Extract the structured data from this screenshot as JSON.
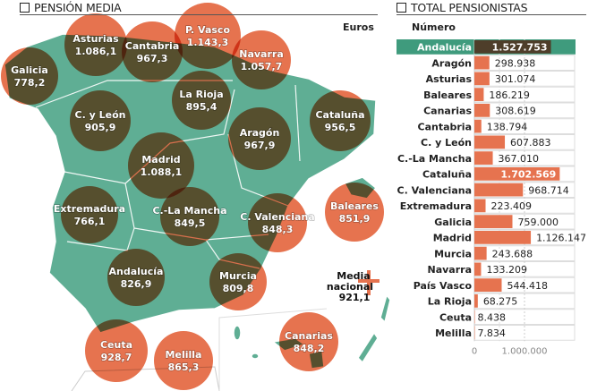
{
  "left": {
    "title": "PENSIÓN MEDIA",
    "unit": "Euros"
  },
  "right": {
    "title": "TOTAL PENSIONISTAS",
    "unit": "Número"
  },
  "national": {
    "label1": "Media",
    "label2": "nacional",
    "value": "921,1"
  },
  "colors": {
    "green": "#5fae94",
    "orange": "#e6734f",
    "highlight": "#3f9b7d",
    "dark": "#4e3e2a"
  },
  "chart_data": [
    {
      "type": "bubble-map",
      "title": "PENSIÓN MEDIA",
      "unit": "Euros",
      "regions": [
        {
          "name": "Galicia",
          "value": "778,2"
        },
        {
          "name": "Asturias",
          "value": "1.086,1"
        },
        {
          "name": "Cantabria",
          "value": "967,3"
        },
        {
          "name": "P. Vasco",
          "value": "1.143,3"
        },
        {
          "name": "Navarra",
          "value": "1.057,7"
        },
        {
          "name": "La Rioja",
          "value": "895,4"
        },
        {
          "name": "C. y León",
          "value": "905,9"
        },
        {
          "name": "Aragón",
          "value": "967,9"
        },
        {
          "name": "Cataluña",
          "value": "956,5"
        },
        {
          "name": "Madrid",
          "value": "1.088,1"
        },
        {
          "name": "Baleares",
          "value": "851,9"
        },
        {
          "name": "Extremadura",
          "value": "766,1"
        },
        {
          "name": "C.-La Mancha",
          "value": "849,5"
        },
        {
          "name": "C. Valenciana",
          "value": "848,3"
        },
        {
          "name": "Andalucía",
          "value": "826,9"
        },
        {
          "name": "Murcia",
          "value": "809,8"
        },
        {
          "name": "Ceuta",
          "value": "928,7"
        },
        {
          "name": "Melilla",
          "value": "865,3"
        },
        {
          "name": "Canarias",
          "value": "848,2"
        }
      ]
    },
    {
      "type": "bar",
      "title": "TOTAL PENSIONISTAS",
      "ylabel": "Número",
      "xlim": [
        0,
        2000000
      ],
      "ticks": [
        {
          "v": 0,
          "label": "0"
        },
        {
          "v": 1000000,
          "label": "1.000.000"
        }
      ],
      "categories": [
        "Andalucía",
        "Aragón",
        "Asturias",
        "Baleares",
        "Canarias",
        "Cantabria",
        "C. y León",
        "C.-La Mancha",
        "Cataluña",
        "C. Valenciana",
        "Extremadura",
        "Galicia",
        "Madrid",
        "Murcia",
        "Navarra",
        "País Vasco",
        "La Rioja",
        "Ceuta",
        "Melilla"
      ],
      "values": [
        1527753,
        298938,
        301074,
        186219,
        308619,
        138794,
        607883,
        367010,
        1702569,
        968714,
        223409,
        759000,
        1126147,
        243688,
        133209,
        544418,
        68275,
        8438,
        7834
      ],
      "labels": [
        "1.527.753",
        "298.938",
        "301.074",
        "186.219",
        "308.619",
        "138.794",
        "607.883",
        "367.010",
        "1.702.569",
        "968.714",
        "223.409",
        "759.000",
        "1.126.147",
        "243.688",
        "133.209",
        "544.418",
        "68.275",
        "8.438",
        "7.834"
      ],
      "highlight": "Andalucía"
    }
  ]
}
